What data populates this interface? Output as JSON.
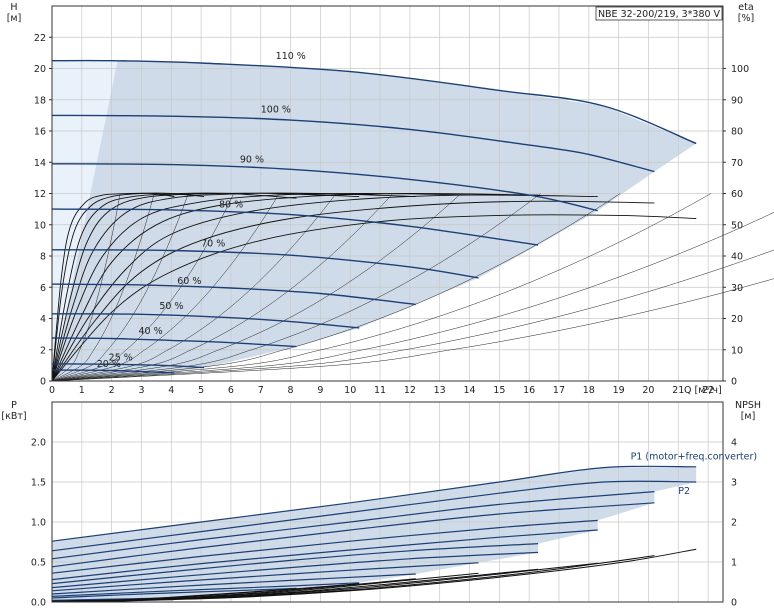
{
  "chart_data": [
    {
      "type": "line",
      "title": "NBE 32-200/219, 3*380 V",
      "xlabel": "Q [м³/ч]",
      "ylabel_left": "H\n[м]",
      "ylabel_right": "eta\n[%]",
      "xlim": [
        0,
        22.5
      ],
      "ylim_left": [
        0,
        24
      ],
      "ylim_right": [
        0,
        120
      ],
      "x_ticks": [
        0,
        1,
        2,
        3,
        4,
        5,
        6,
        7,
        8,
        9,
        10,
        11,
        12,
        13,
        14,
        15,
        16,
        17,
        18,
        19,
        20,
        21,
        22
      ],
      "y_ticks_left": [
        0,
        2,
        4,
        6,
        8,
        10,
        12,
        14,
        16,
        18,
        20,
        22
      ],
      "y_ticks_right": [
        0,
        10,
        20,
        30,
        40,
        50,
        60,
        70,
        80,
        90,
        100
      ],
      "grid": true,
      "speed_curves": [
        {
          "label": "110 %",
          "label_at": [
            7.5,
            20.6
          ],
          "h0": 20.5,
          "x": [
            0,
            2,
            5,
            10,
            15,
            18.5,
            21.6
          ],
          "y": [
            20.5,
            20.5,
            20.35,
            19.8,
            18.6,
            17.6,
            15.2
          ]
        },
        {
          "label": "100 %",
          "label_at": [
            7.0,
            17.2
          ],
          "h0": 17,
          "x": [
            0,
            4,
            8,
            12,
            16,
            18,
            20.2
          ],
          "y": [
            17,
            16.95,
            16.7,
            16.1,
            15.1,
            14.5,
            13.4
          ]
        },
        {
          "label": "90 %",
          "label_at": [
            6.3,
            14.0
          ],
          "h0": 13.9,
          "x": [
            0,
            4,
            8,
            12,
            16,
            18.3
          ],
          "y": [
            13.9,
            13.85,
            13.55,
            12.9,
            11.9,
            10.9
          ]
        },
        {
          "label": "80 %",
          "label_at": [
            5.6,
            11.1
          ],
          "h0": 11,
          "x": [
            0,
            4,
            8,
            12,
            16.3
          ],
          "y": [
            11,
            10.95,
            10.65,
            9.9,
            8.7
          ]
        },
        {
          "label": "70 %",
          "label_at": [
            5.0,
            8.6
          ],
          "h0": 8.4,
          "x": [
            0,
            4,
            8,
            12,
            14.3
          ],
          "y": [
            8.4,
            8.35,
            8.05,
            7.3,
            6.6
          ]
        },
        {
          "label": "60 %",
          "label_at": [
            4.2,
            6.2
          ],
          "h0": 6.2,
          "x": [
            0,
            3,
            6,
            9,
            12.2
          ],
          "y": [
            6.2,
            6.15,
            5.95,
            5.6,
            4.9
          ]
        },
        {
          "label": "50 %",
          "label_at": [
            3.6,
            4.6
          ],
          "h0": 4.3,
          "x": [
            0,
            3,
            6,
            8,
            10.3
          ],
          "y": [
            4.3,
            4.27,
            4.05,
            3.8,
            3.4
          ]
        },
        {
          "label": "40 %",
          "label_at": [
            2.9,
            3.0
          ],
          "h0": 2.75,
          "x": [
            0,
            2,
            4,
            6,
            8.2
          ],
          "y": [
            2.75,
            2.72,
            2.6,
            2.45,
            2.2
          ]
        },
        {
          "label": "25 %",
          "label_at": [
            1.9,
            1.3
          ],
          "h0": 1.1,
          "x": [
            0,
            2,
            4,
            5.1
          ],
          "y": [
            1.1,
            1.07,
            0.98,
            0.85
          ]
        },
        {
          "label": "20 %",
          "label_at": [
            1.5,
            0.9
          ],
          "h0": 0.7,
          "x": [
            0,
            2,
            4.1
          ],
          "y": [
            0.7,
            0.67,
            0.52
          ]
        }
      ],
      "efficiency_curves_eta": [
        {
          "x": [
            0,
            2,
            4,
            7,
            11,
            15,
            19,
            21.6
          ],
          "y": [
            0,
            22,
            35,
            45,
            51,
            53,
            53,
            52
          ]
        },
        {
          "x": [
            0,
            1.5,
            3,
            5,
            8,
            12,
            16,
            20.2
          ],
          "y": [
            0,
            20,
            35,
            45,
            52,
            56,
            57.5,
            57
          ]
        },
        {
          "x": [
            0,
            1.2,
            2.5,
            4,
            6.5,
            10,
            14,
            18.3
          ],
          "y": [
            0,
            20,
            36,
            47,
            54,
            58,
            59.5,
            59
          ]
        },
        {
          "x": [
            0,
            1,
            2,
            3.5,
            5.5,
            8.5,
            12,
            16.3
          ],
          "y": [
            0,
            21,
            38,
            50,
            56,
            59,
            60,
            59.5
          ]
        },
        {
          "x": [
            0,
            0.8,
            1.7,
            3,
            4.8,
            7.5,
            10.5,
            14.3
          ],
          "y": [
            0,
            22,
            40,
            52,
            57,
            59.5,
            60,
            59.5
          ]
        },
        {
          "x": [
            0,
            0.7,
            1.4,
            2.5,
            4,
            6.5,
            9,
            12.2
          ],
          "y": [
            0,
            24,
            42,
            54,
            58.5,
            60,
            60,
            59
          ]
        },
        {
          "x": [
            0,
            0.6,
            1.2,
            2,
            3.3,
            5.5,
            7.5,
            10.3
          ],
          "y": [
            0,
            26,
            45,
            55,
            59,
            60,
            60,
            59
          ]
        },
        {
          "x": [
            0,
            0.5,
            1,
            1.7,
            2.7,
            4.3,
            6,
            8.2
          ],
          "y": [
            0,
            28,
            47,
            56,
            59,
            60,
            60,
            58.5
          ]
        },
        {
          "x": [
            0,
            0.35,
            0.75,
            1.3,
            2,
            3,
            4,
            5.1
          ],
          "y": [
            0,
            30,
            48,
            56,
            59,
            60,
            60,
            59
          ]
        },
        {
          "x": [
            0,
            0.3,
            0.6,
            1.1,
            1.7,
            2.6,
            3.4,
            4.1
          ],
          "y": [
            0,
            32,
            49,
            57,
            59.5,
            60,
            60,
            59
          ]
        }
      ]
    },
    {
      "type": "line",
      "xlabel": "Q [м³/ч]",
      "ylabel_left": "P\n[кВт]",
      "ylabel_right": "NPSH\n[м]",
      "xlim": [
        0,
        22.5
      ],
      "ylim_left": [
        0,
        2.5
      ],
      "ylim_right": [
        0,
        5
      ],
      "y_ticks_left": [
        0.0,
        0.5,
        1.0,
        1.5,
        2.0
      ],
      "y_ticks_left_labels": [
        "0.0",
        "0.5",
        "1.0",
        "1.5",
        "2.0"
      ],
      "y_ticks_right": [
        0,
        1,
        2,
        3,
        4
      ],
      "grid": true,
      "annotations": [
        {
          "text": "P1 (motor+freq.converter)",
          "at": [
            19.2,
            1.78
          ]
        },
        {
          "text": "P2",
          "at": [
            21.0,
            1.35
          ]
        }
      ],
      "power_curves": [
        {
          "x": [
            0,
            5,
            10,
            15,
            18.5,
            21.6
          ],
          "y": [
            0.76,
            1.0,
            1.24,
            1.5,
            1.68,
            1.69
          ]
        },
        {
          "x": [
            0,
            5,
            10,
            15,
            18.5,
            21.6
          ],
          "y": [
            0.64,
            0.88,
            1.12,
            1.36,
            1.5,
            1.5
          ]
        },
        {
          "x": [
            0,
            5,
            10,
            15,
            20.2
          ],
          "y": [
            0.54,
            0.78,
            1.0,
            1.22,
            1.38
          ]
        },
        {
          "x": [
            0,
            5,
            10,
            15,
            20.2
          ],
          "y": [
            0.44,
            0.68,
            0.9,
            1.1,
            1.24
          ]
        },
        {
          "x": [
            0,
            5,
            10,
            15,
            18.3
          ],
          "y": [
            0.36,
            0.57,
            0.76,
            0.93,
            1.02
          ]
        },
        {
          "x": [
            0,
            5,
            10,
            15,
            18.3
          ],
          "y": [
            0.28,
            0.48,
            0.65,
            0.81,
            0.9
          ]
        },
        {
          "x": [
            0,
            4,
            8,
            12,
            16.3
          ],
          "y": [
            0.23,
            0.38,
            0.52,
            0.64,
            0.73
          ]
        },
        {
          "x": [
            0,
            4,
            8,
            12,
            16.3
          ],
          "y": [
            0.18,
            0.31,
            0.43,
            0.54,
            0.62
          ]
        },
        {
          "x": [
            0,
            4,
            8,
            11,
            14.3
          ],
          "y": [
            0.14,
            0.25,
            0.35,
            0.42,
            0.49
          ]
        },
        {
          "x": [
            0,
            4,
            8,
            12.2
          ],
          "y": [
            0.1,
            0.19,
            0.27,
            0.35
          ]
        },
        {
          "x": [
            0,
            4,
            8,
            10.3
          ],
          "y": [
            0.07,
            0.14,
            0.2,
            0.24
          ]
        },
        {
          "x": [
            0,
            3,
            6,
            8.2
          ],
          "y": [
            0.05,
            0.1,
            0.14,
            0.17
          ]
        },
        {
          "x": [
            0,
            2.5,
            5.1
          ],
          "y": [
            0.02,
            0.04,
            0.06
          ]
        },
        {
          "x": [
            0,
            2,
            4.1
          ],
          "y": [
            0.015,
            0.03,
            0.04
          ]
        }
      ],
      "npsh_curves": [
        {
          "x": [
            0,
            5,
            10,
            15,
            19,
            21.6
          ],
          "y": [
            0.02,
            0.08,
            0.28,
            0.62,
            0.98,
            1.32
          ]
        },
        {
          "x": [
            0,
            5,
            10,
            15,
            18.5,
            20.2
          ],
          "y": [
            0.02,
            0.09,
            0.3,
            0.65,
            0.98,
            1.16
          ]
        },
        {
          "x": [
            0,
            5,
            10,
            15,
            18.3
          ],
          "y": [
            0.02,
            0.1,
            0.33,
            0.7,
            0.97
          ]
        },
        {
          "x": [
            0,
            4,
            8,
            12,
            16.3
          ],
          "y": [
            0.02,
            0.08,
            0.24,
            0.5,
            0.82
          ]
        },
        {
          "x": [
            0,
            4,
            8,
            12,
            14.3
          ],
          "y": [
            0.02,
            0.09,
            0.27,
            0.55,
            0.72
          ]
        },
        {
          "x": [
            0,
            3,
            6,
            9,
            12.2
          ],
          "y": [
            0.02,
            0.06,
            0.18,
            0.36,
            0.58
          ]
        },
        {
          "x": [
            0,
            3,
            6,
            8,
            10.3
          ],
          "y": [
            0.02,
            0.07,
            0.21,
            0.32,
            0.46
          ]
        },
        {
          "x": [
            0,
            2,
            4,
            6,
            8.2
          ],
          "y": [
            0.02,
            0.04,
            0.12,
            0.22,
            0.33
          ]
        },
        {
          "x": [
            0,
            2,
            4,
            5.1
          ],
          "y": [
            0.01,
            0.03,
            0.07,
            0.1
          ]
        },
        {
          "x": [
            0,
            2,
            4.1
          ],
          "y": [
            0.01,
            0.02,
            0.06
          ]
        }
      ]
    }
  ]
}
